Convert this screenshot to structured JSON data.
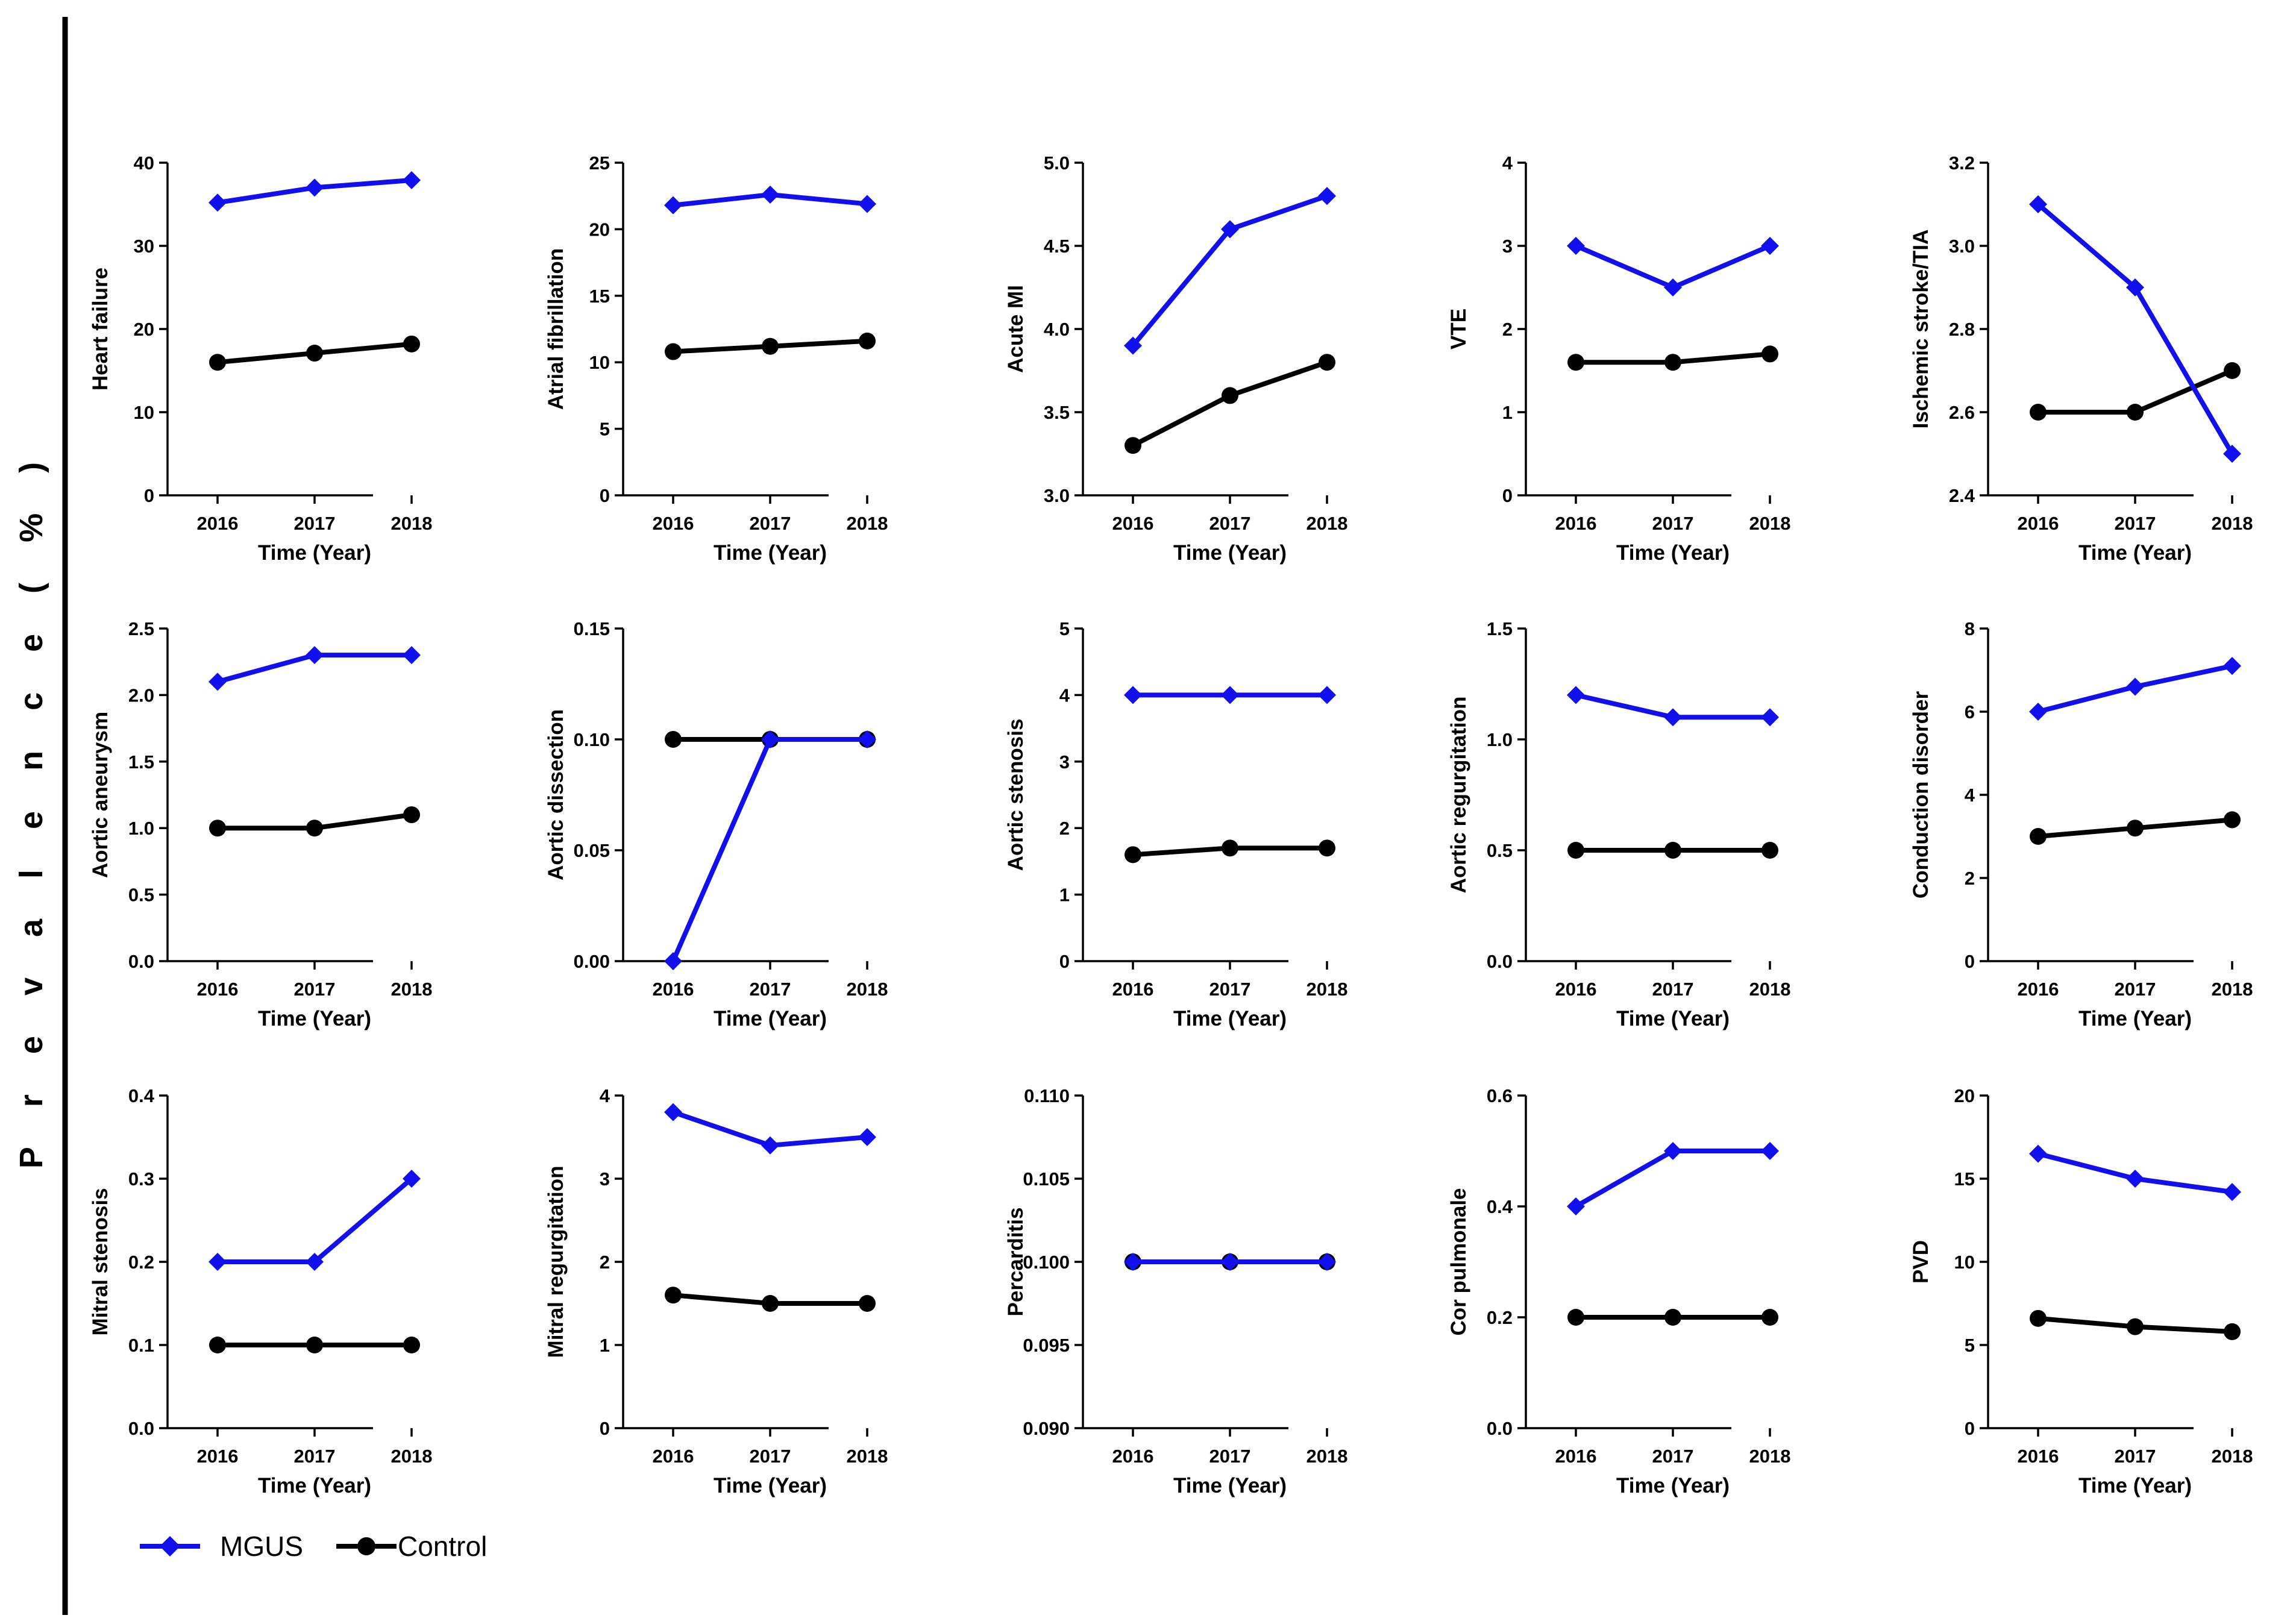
{
  "figure": {
    "y_super_label": "P r e v a l e n c e   ( % )",
    "colors": {
      "mgus": "#1010ee",
      "control": "#000000"
    },
    "legend": [
      {
        "name": "MGUS",
        "marker": "diamond"
      },
      {
        "name": "Control",
        "marker": "circle"
      }
    ]
  },
  "chart_data": [
    {
      "type": "line",
      "ylabel": "Heart failure",
      "xlabel": "Time (Year)",
      "x": [
        "2016",
        "2017",
        "2018"
      ],
      "ylim": [
        0,
        40
      ],
      "yticks": [
        "0",
        "10",
        "20",
        "30",
        "40"
      ],
      "series": [
        {
          "name": "MGUS",
          "values": [
            35.2,
            37.0,
            37.9
          ]
        },
        {
          "name": "Control",
          "values": [
            16.0,
            17.1,
            18.2
          ]
        }
      ]
    },
    {
      "type": "line",
      "ylabel": "Atrial fibrillation",
      "xlabel": "Time (Year)",
      "x": [
        "2016",
        "2017",
        "2018"
      ],
      "ylim": [
        0,
        25
      ],
      "yticks": [
        "0",
        "5",
        "10",
        "15",
        "20",
        "25"
      ],
      "series": [
        {
          "name": "MGUS",
          "values": [
            21.8,
            22.6,
            21.9
          ]
        },
        {
          "name": "Control",
          "values": [
            10.8,
            11.2,
            11.6
          ]
        }
      ]
    },
    {
      "type": "line",
      "ylabel": "Acute MI",
      "xlabel": "Time (Year)",
      "x": [
        "2016",
        "2017",
        "2018"
      ],
      "ylim": [
        3.0,
        5.0
      ],
      "yticks": [
        "3.0",
        "3.5",
        "4.0",
        "4.5",
        "5.0"
      ],
      "series": [
        {
          "name": "MGUS",
          "values": [
            3.9,
            4.6,
            4.8
          ]
        },
        {
          "name": "Control",
          "values": [
            3.3,
            3.6,
            3.8
          ]
        }
      ]
    },
    {
      "type": "line",
      "ylabel": "VTE",
      "xlabel": "Time (Year)",
      "x": [
        "2016",
        "2017",
        "2018"
      ],
      "ylim": [
        0,
        4
      ],
      "yticks": [
        "0",
        "1",
        "2",
        "3",
        "4"
      ],
      "series": [
        {
          "name": "MGUS",
          "values": [
            3.0,
            2.5,
            3.0
          ]
        },
        {
          "name": "Control",
          "values": [
            1.6,
            1.6,
            1.7
          ]
        }
      ]
    },
    {
      "type": "line",
      "ylabel": "Ischemic stroke/TIA",
      "xlabel": "Time (Year)",
      "x": [
        "2016",
        "2017",
        "2018"
      ],
      "ylim": [
        2.4,
        3.2
      ],
      "yticks": [
        "2.4",
        "2.6",
        "2.8",
        "3.0",
        "3.2"
      ],
      "series": [
        {
          "name": "MGUS",
          "values": [
            3.1,
            2.9,
            2.5
          ]
        },
        {
          "name": "Control",
          "values": [
            2.6,
            2.6,
            2.7
          ]
        }
      ]
    },
    {
      "type": "line",
      "ylabel": "Aortic aneurysm",
      "xlabel": "Time (Year)",
      "x": [
        "2016",
        "2017",
        "2018"
      ],
      "ylim": [
        0,
        2.5
      ],
      "yticks": [
        "0.0",
        "0.5",
        "1.0",
        "1.5",
        "2.0",
        "2.5"
      ],
      "series": [
        {
          "name": "MGUS",
          "values": [
            2.1,
            2.3,
            2.3
          ]
        },
        {
          "name": "Control",
          "values": [
            1.0,
            1.0,
            1.1
          ]
        }
      ]
    },
    {
      "type": "line",
      "ylabel": "Aortic dissection",
      "xlabel": "Time (Year)",
      "x": [
        "2016",
        "2017",
        "2018"
      ],
      "ylim": [
        0,
        0.15
      ],
      "yticks": [
        "0.00",
        "0.05",
        "0.10",
        "0.15"
      ],
      "series": [
        {
          "name": "MGUS",
          "values": [
            0.0,
            0.1,
            0.1
          ]
        },
        {
          "name": "Control",
          "values": [
            0.1,
            0.1,
            0.1
          ]
        }
      ]
    },
    {
      "type": "line",
      "ylabel": "Aortic stenosis",
      "xlabel": "Time (Year)",
      "x": [
        "2016",
        "2017",
        "2018"
      ],
      "ylim": [
        0,
        5
      ],
      "yticks": [
        "0",
        "1",
        "2",
        "3",
        "4",
        "5"
      ],
      "series": [
        {
          "name": "MGUS",
          "values": [
            4.0,
            4.0,
            4.0
          ]
        },
        {
          "name": "Control",
          "values": [
            1.6,
            1.7,
            1.7
          ]
        }
      ]
    },
    {
      "type": "line",
      "ylabel": "Aortic regurgitation",
      "xlabel": "Time (Year)",
      "x": [
        "2016",
        "2017",
        "2018"
      ],
      "ylim": [
        0,
        1.5
      ],
      "yticks": [
        "0.0",
        "0.5",
        "1.0",
        "1.5"
      ],
      "series": [
        {
          "name": "MGUS",
          "values": [
            1.2,
            1.1,
            1.1
          ]
        },
        {
          "name": "Control",
          "values": [
            0.5,
            0.5,
            0.5
          ]
        }
      ]
    },
    {
      "type": "line",
      "ylabel": "Conduction disorder",
      "xlabel": "Time (Year)",
      "x": [
        "2016",
        "2017",
        "2018"
      ],
      "ylim": [
        0,
        8
      ],
      "yticks": [
        "0",
        "2",
        "4",
        "6",
        "8"
      ],
      "series": [
        {
          "name": "MGUS",
          "values": [
            6.0,
            6.6,
            7.1
          ]
        },
        {
          "name": "Control",
          "values": [
            3.0,
            3.2,
            3.4
          ]
        }
      ]
    },
    {
      "type": "line",
      "ylabel": "Mitral stenosis",
      "xlabel": "Time (Year)",
      "x": [
        "2016",
        "2017",
        "2018"
      ],
      "ylim": [
        0,
        0.4
      ],
      "yticks": [
        "0.0",
        "0.1",
        "0.2",
        "0.3",
        "0.4"
      ],
      "series": [
        {
          "name": "MGUS",
          "values": [
            0.2,
            0.2,
            0.3
          ]
        },
        {
          "name": "Control",
          "values": [
            0.1,
            0.1,
            0.1
          ]
        }
      ]
    },
    {
      "type": "line",
      "ylabel": "Mitral regurgitation",
      "xlabel": "Time (Year)",
      "x": [
        "2016",
        "2017",
        "2018"
      ],
      "ylim": [
        0,
        4
      ],
      "yticks": [
        "0",
        "1",
        "2",
        "3",
        "4"
      ],
      "series": [
        {
          "name": "MGUS",
          "values": [
            3.8,
            3.4,
            3.5
          ]
        },
        {
          "name": "Control",
          "values": [
            1.6,
            1.5,
            1.5
          ]
        }
      ]
    },
    {
      "type": "line",
      "ylabel": "Percarditis",
      "xlabel": "Time (Year)",
      "x": [
        "2016",
        "2017",
        "2018"
      ],
      "ylim": [
        0.09,
        0.11
      ],
      "yticks": [
        "0.090",
        "0.095",
        "0.100",
        "0.105",
        "0.110"
      ],
      "series": [
        {
          "name": "MGUS",
          "values": [
            0.1,
            0.1,
            0.1
          ]
        },
        {
          "name": "Control",
          "values": [
            0.1,
            0.1,
            0.1
          ]
        }
      ]
    },
    {
      "type": "line",
      "ylabel": "Cor pulmonale",
      "xlabel": "Time (Year)",
      "x": [
        "2016",
        "2017",
        "2018"
      ],
      "ylim": [
        0,
        0.6
      ],
      "yticks": [
        "0.0",
        "0.2",
        "0.4",
        "0.6"
      ],
      "series": [
        {
          "name": "MGUS",
          "values": [
            0.4,
            0.5,
            0.5
          ]
        },
        {
          "name": "Control",
          "values": [
            0.2,
            0.2,
            0.2
          ]
        }
      ]
    },
    {
      "type": "line",
      "ylabel": "PVD",
      "xlabel": "Time (Year)",
      "x": [
        "2016",
        "2017",
        "2018"
      ],
      "ylim": [
        0,
        20
      ],
      "yticks": [
        "0",
        "5",
        "10",
        "15",
        "20"
      ],
      "series": [
        {
          "name": "MGUS",
          "values": [
            16.5,
            15.0,
            14.2
          ]
        },
        {
          "name": "Control",
          "values": [
            6.6,
            6.1,
            5.8
          ]
        }
      ]
    }
  ]
}
